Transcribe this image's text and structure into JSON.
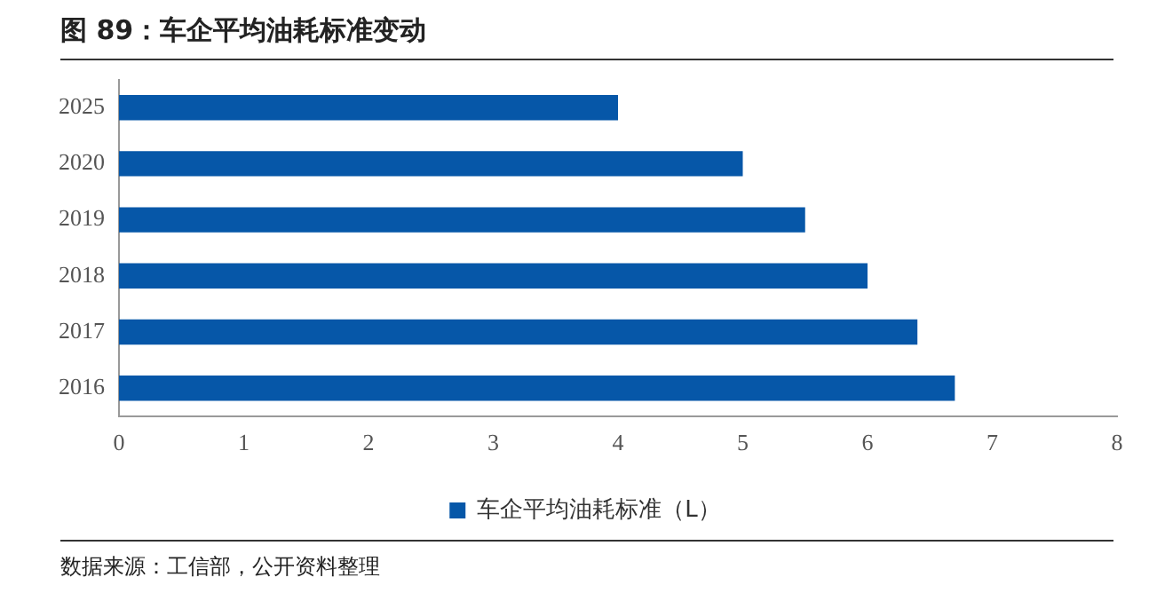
{
  "chart_data": {
    "type": "bar",
    "title": "图 89：车企平均油耗标准变动",
    "orientation": "horizontal",
    "categories": [
      "2025",
      "2020",
      "2019",
      "2018",
      "2017",
      "2016"
    ],
    "series": [
      {
        "name": "车企平均油耗标准（L）",
        "color": "#0657a8",
        "values": [
          4,
          5,
          5.5,
          6,
          6.4,
          6.7
        ]
      }
    ],
    "xlim": [
      0,
      8
    ],
    "xticks": [
      0,
      1,
      2,
      3,
      4,
      5,
      6,
      7,
      8
    ],
    "grid": false,
    "legend": "bottom",
    "annotations": [
      "数据来源：工信部，公开资料整理"
    ]
  }
}
